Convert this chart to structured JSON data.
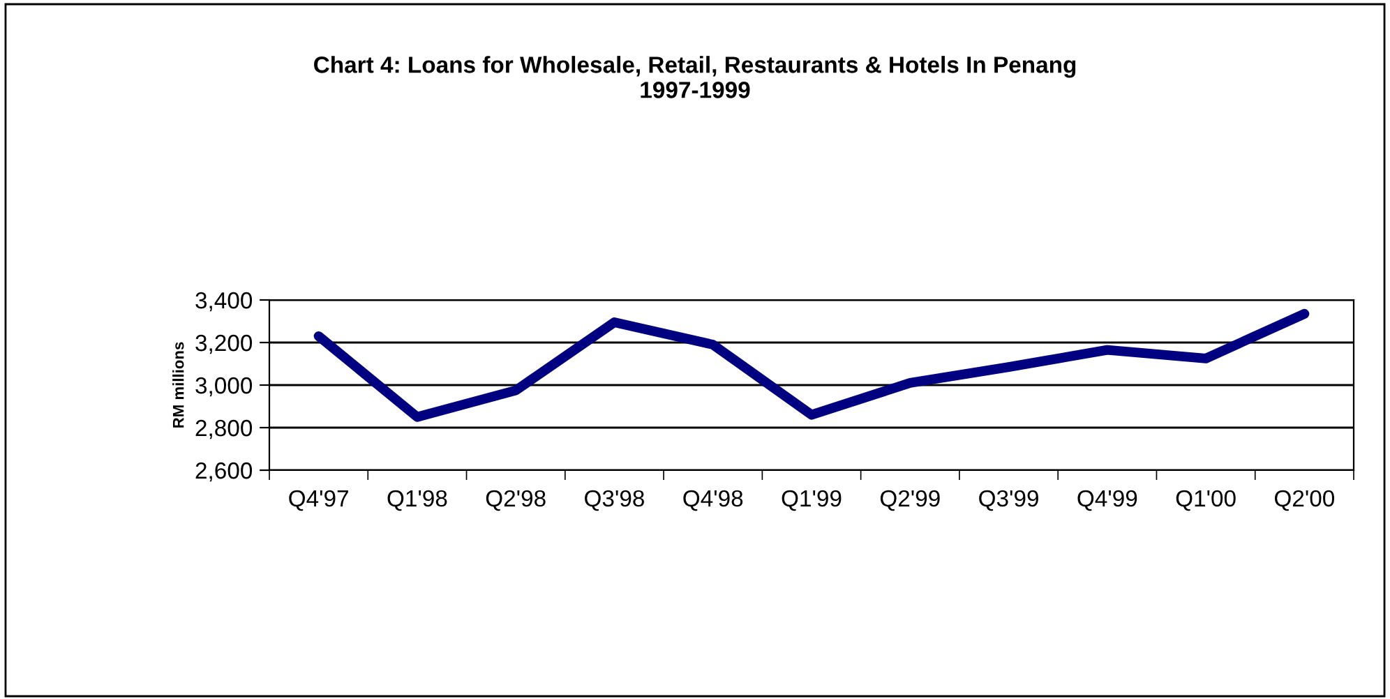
{
  "chart_data": {
    "type": "line",
    "title": "Chart 4: Loans for Wholesale, Retail, Restaurants & Hotels In Penang\n1997-1999",
    "ylabel": "RM millions",
    "categories": [
      "Q4'97",
      "Q1'98",
      "Q2'98",
      "Q3'98",
      "Q4'98",
      "Q1'99",
      "Q2'99",
      "Q3'99",
      "Q4'99",
      "Q1'00",
      "Q2'00"
    ],
    "series": [
      {
        "color": "#000080",
        "values": [
          3230,
          2850,
          2975,
          3295,
          3190,
          2860,
          3010,
          3085,
          3165,
          3125,
          3335
        ]
      }
    ],
    "ylim": [
      2600,
      3400
    ],
    "yticks": [
      {
        "value": 2600,
        "label": "2,600"
      },
      {
        "value": 2800,
        "label": "2,800"
      },
      {
        "value": 3000,
        "label": "3,000"
      },
      {
        "value": 3200,
        "label": "3,200"
      },
      {
        "value": 3400,
        "label": "3,400"
      }
    ],
    "grid": "y",
    "legend": false
  }
}
